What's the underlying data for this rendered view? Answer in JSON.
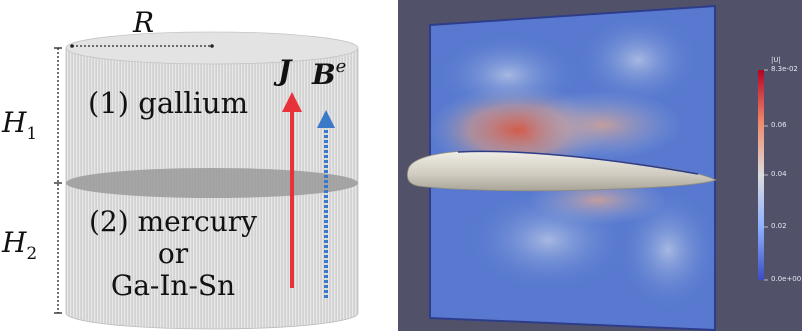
{
  "left_panel": {
    "radius_label": "R",
    "h1_main": "H",
    "h1_sub": "1",
    "h2_main": "H",
    "h2_sub": "2",
    "layer1_text": "(1) gallium",
    "layer2_line1": "(2) mercury",
    "layer2_line2": "or",
    "layer2_line3": "Ga-In-Sn",
    "current_label": "J",
    "field_main": "B",
    "field_sup": "e"
  },
  "right_panel": {
    "colorbar_title": "|U|",
    "colorbar_ticks": [
      "8.3e-02",
      "0.06",
      "0.04",
      "0.02",
      "0.0e+00"
    ],
    "colors": {
      "background": "#51526a",
      "field_low": "#3b4cc0",
      "field_high": "#d24b40",
      "body": "#d9d6cc"
    }
  },
  "colors": {
    "cylinder": "#d4d4d4",
    "current_arrow": "#e8323a",
    "field_arrow": "#3a78c8"
  }
}
